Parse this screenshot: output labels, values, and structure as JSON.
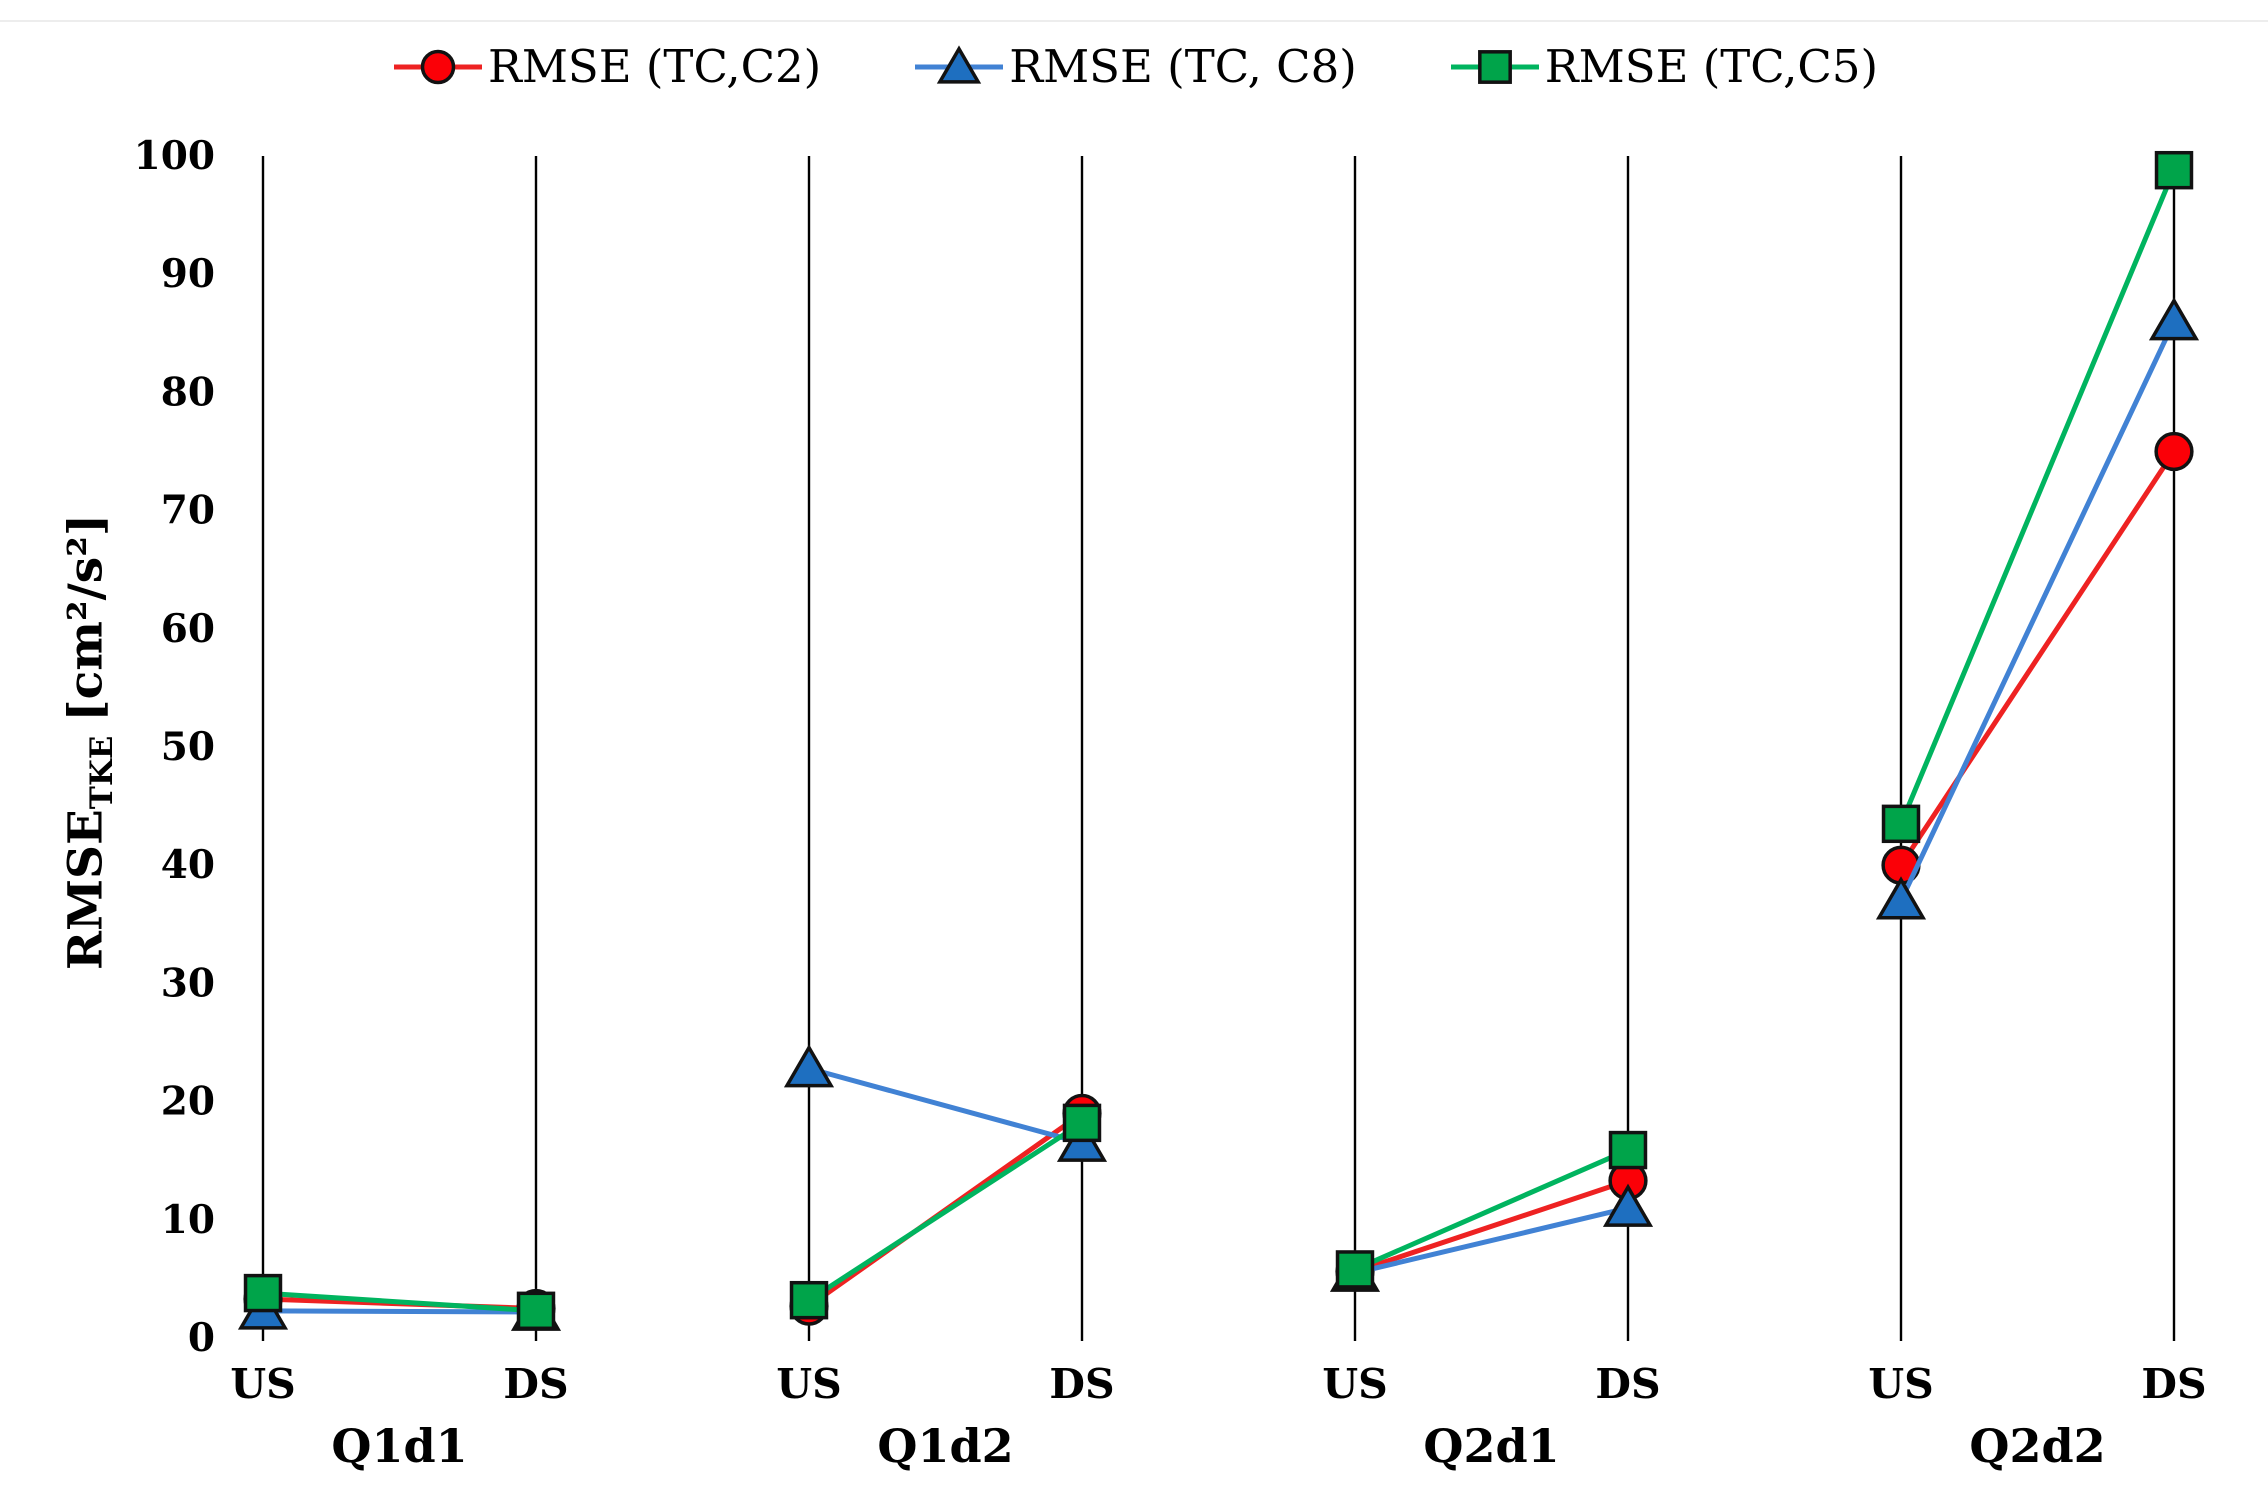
{
  "page": {
    "background": "#ffffff",
    "top_border_color": "#ededed"
  },
  "chart_data": {
    "type": "line",
    "title": "",
    "ylabel": {
      "prefix": "RMSE",
      "subscript": "TKE",
      "units": "[cm²/s²]"
    },
    "ylim": [
      0,
      100
    ],
    "ytick_step": 10,
    "yticks": [
      0,
      10,
      20,
      30,
      40,
      50,
      60,
      70,
      80,
      90,
      100
    ],
    "grid": "vertical category lines only, no horizontal gridlines, no baseline",
    "legend_position": "top-center",
    "marker_outline_color": "#121212",
    "groups": [
      "Q1d1",
      "Q1d2",
      "Q2d1",
      "Q2d2"
    ],
    "x_categories": [
      "US",
      "DS"
    ],
    "series": [
      {
        "name": "RMSE (TC,C2)",
        "marker": "circle",
        "line_color": "#ee2222",
        "fill_color": "#fb0007",
        "values_by_group": [
          [
            3.3,
            2.5
          ],
          [
            2.7,
            19.0
          ],
          [
            5.6,
            13.3
          ],
          [
            40.0,
            75.0
          ]
        ]
      },
      {
        "name": "RMSE (TC, C8)",
        "marker": "triangle",
        "line_color": "#4182d4",
        "fill_color": "#1e6fc0",
        "values_by_group": [
          [
            2.3,
            2.2
          ],
          [
            22.8,
            16.5
          ],
          [
            5.5,
            11.0
          ],
          [
            37.0,
            86.0
          ]
        ]
      },
      {
        "name": "RMSE (TC,C5)",
        "marker": "square",
        "line_color": "#00b45f",
        "fill_color": "#00a44a",
        "values_by_group": [
          [
            3.8,
            2.3
          ],
          [
            3.2,
            18.2
          ],
          [
            5.8,
            15.9
          ],
          [
            43.5,
            98.8
          ]
        ]
      }
    ]
  }
}
